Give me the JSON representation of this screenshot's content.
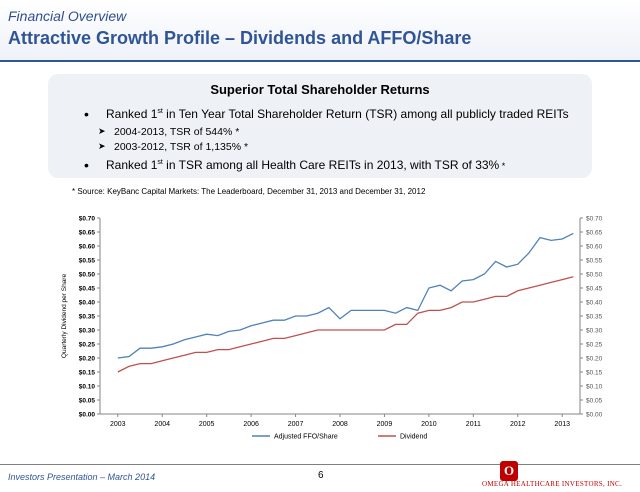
{
  "header": {
    "subtitle": "Financial Overview",
    "title": "Attractive Growth Profile – Dividends and AFFO/Share"
  },
  "box": {
    "title": "Superior Total Shareholder Returns",
    "bullet1_pre": "Ranked 1",
    "bullet1_sup": "st",
    "bullet1_post": " in Ten Year Total Shareholder Return (TSR) among all publicly traded REITs",
    "sub1": "2004-2013, TSR of 544% *",
    "sub2": "2003-2012, TSR of 1,135% *",
    "bullet2_pre": "Ranked 1",
    "bullet2_sup": "st",
    "bullet2_post": " in TSR among all Health Care REITs in 2013, with TSR of 33%",
    "bullet2_star": " *"
  },
  "source": "* Source: KeyBanc Capital Markets:  The Leaderboard, December 31, 2013 and December 31, 2012",
  "chart_data": {
    "type": "line",
    "ylabel": "Quarterly Dividend per Share",
    "xlabel": "",
    "ylim": [
      0,
      0.7
    ],
    "ytick_step": 0.05,
    "yticks_left": [
      "$0.00",
      "$0.05",
      "$0.10",
      "$0.15",
      "$0.20",
      "$0.25",
      "$0.30",
      "$0.35",
      "$0.40",
      "$0.45",
      "$0.50",
      "$0.55",
      "$0.60",
      "$0.65",
      "$0.70"
    ],
    "yticks_right": [
      "$0.00",
      "$0.05",
      "$0.10",
      "$0.15",
      "$0.20",
      "$0.25",
      "$0.30",
      "$0.35",
      "$0.40",
      "$0.45",
      "$0.50",
      "$0.55",
      "$0.60",
      "$0.65",
      "$0.70"
    ],
    "xticks": [
      "2003",
      "2004",
      "2005",
      "2006",
      "2007",
      "2008",
      "2009",
      "2010",
      "2011",
      "2012",
      "2013"
    ],
    "grid": false,
    "legend": "bottom",
    "series": [
      {
        "name": "Adjusted FFO/Share",
        "color": "#4f81bd",
        "points": [
          [
            2003.0,
            0.2
          ],
          [
            2003.25,
            0.205
          ],
          [
            2003.5,
            0.235
          ],
          [
            2003.75,
            0.235
          ],
          [
            2004.0,
            0.24
          ],
          [
            2004.25,
            0.25
          ],
          [
            2004.5,
            0.265
          ],
          [
            2004.75,
            0.275
          ],
          [
            2005.0,
            0.285
          ],
          [
            2005.25,
            0.28
          ],
          [
            2005.5,
            0.295
          ],
          [
            2005.75,
            0.3
          ],
          [
            2006.0,
            0.315
          ],
          [
            2006.25,
            0.325
          ],
          [
            2006.5,
            0.335
          ],
          [
            2006.75,
            0.335
          ],
          [
            2007.0,
            0.35
          ],
          [
            2007.25,
            0.35
          ],
          [
            2007.5,
            0.36
          ],
          [
            2007.75,
            0.38
          ],
          [
            2008.0,
            0.34
          ],
          [
            2008.25,
            0.37
          ],
          [
            2008.5,
            0.37
          ],
          [
            2008.75,
            0.37
          ],
          [
            2009.0,
            0.37
          ],
          [
            2009.25,
            0.36
          ],
          [
            2009.5,
            0.38
          ],
          [
            2009.75,
            0.37
          ],
          [
            2010.0,
            0.45
          ],
          [
            2010.25,
            0.46
          ],
          [
            2010.5,
            0.44
          ],
          [
            2010.75,
            0.475
          ],
          [
            2011.0,
            0.48
          ],
          [
            2011.25,
            0.5
          ],
          [
            2011.5,
            0.545
          ],
          [
            2011.75,
            0.525
          ],
          [
            2012.0,
            0.535
          ],
          [
            2012.25,
            0.575
          ],
          [
            2012.5,
            0.63
          ],
          [
            2012.75,
            0.62
          ],
          [
            2013.0,
            0.625
          ],
          [
            2013.25,
            0.645
          ]
        ]
      },
      {
        "name": "Dividend",
        "color": "#c0504d",
        "points": [
          [
            2003.0,
            0.15
          ],
          [
            2003.25,
            0.17
          ],
          [
            2003.5,
            0.18
          ],
          [
            2003.75,
            0.18
          ],
          [
            2004.0,
            0.19
          ],
          [
            2004.25,
            0.2
          ],
          [
            2004.5,
            0.21
          ],
          [
            2004.75,
            0.22
          ],
          [
            2005.0,
            0.22
          ],
          [
            2005.25,
            0.23
          ],
          [
            2005.5,
            0.23
          ],
          [
            2005.75,
            0.24
          ],
          [
            2006.0,
            0.25
          ],
          [
            2006.25,
            0.26
          ],
          [
            2006.5,
            0.27
          ],
          [
            2006.75,
            0.27
          ],
          [
            2007.0,
            0.28
          ],
          [
            2007.25,
            0.29
          ],
          [
            2007.5,
            0.3
          ],
          [
            2007.75,
            0.3
          ],
          [
            2008.0,
            0.3
          ],
          [
            2008.25,
            0.3
          ],
          [
            2008.5,
            0.3
          ],
          [
            2008.75,
            0.3
          ],
          [
            2009.0,
            0.3
          ],
          [
            2009.25,
            0.32
          ],
          [
            2009.5,
            0.32
          ],
          [
            2009.75,
            0.36
          ],
          [
            2010.0,
            0.37
          ],
          [
            2010.25,
            0.37
          ],
          [
            2010.5,
            0.38
          ],
          [
            2010.75,
            0.4
          ],
          [
            2011.0,
            0.4
          ],
          [
            2011.25,
            0.41
          ],
          [
            2011.5,
            0.42
          ],
          [
            2011.75,
            0.42
          ],
          [
            2012.0,
            0.44
          ],
          [
            2012.25,
            0.45
          ],
          [
            2012.5,
            0.46
          ],
          [
            2012.75,
            0.47
          ],
          [
            2013.0,
            0.48
          ],
          [
            2013.25,
            0.49
          ]
        ]
      }
    ]
  },
  "footer": {
    "left": "Investors Presentation – March 2014",
    "page": "6",
    "logo_letter": "O",
    "logo_text": "OMEGA HEALTHCARE INVESTORS, INC."
  },
  "colors": {
    "brand": "#2f5597",
    "logo": "#c00000"
  }
}
